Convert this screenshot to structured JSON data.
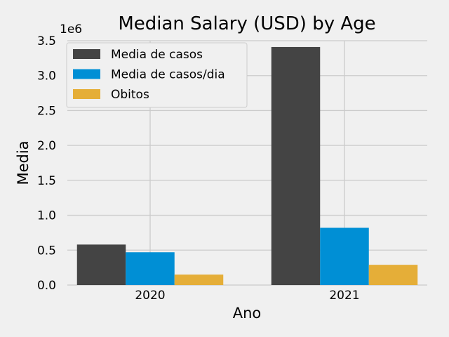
{
  "chart_data": {
    "type": "bar",
    "title": "Median Salary (USD) by Age",
    "xlabel": "Ano",
    "ylabel": "Media",
    "offset_label": "1e6",
    "categories": [
      "2020",
      "2021"
    ],
    "series": [
      {
        "name": "Media de casos",
        "color": "#444444",
        "values": [
          580000,
          3410000
        ]
      },
      {
        "name": "Media de casos/dia",
        "color": "#008fd5",
        "values": [
          470000,
          820000
        ]
      },
      {
        "name": "Obitos",
        "color": "#e5ae38",
        "values": [
          150000,
          290000
        ]
      }
    ],
    "ylim": [
      0,
      3500000
    ],
    "yticks": [
      0,
      500000,
      1000000,
      1500000,
      2000000,
      2500000,
      3000000,
      3500000
    ],
    "ytick_labels": [
      "0.0",
      "0.5",
      "1.0",
      "1.5",
      "2.0",
      "2.5",
      "3.0",
      "3.5"
    ],
    "grid": true,
    "legend_position": "upper-left",
    "background_color": "#f0f0f0",
    "grid_color": "#cbcbcb"
  }
}
